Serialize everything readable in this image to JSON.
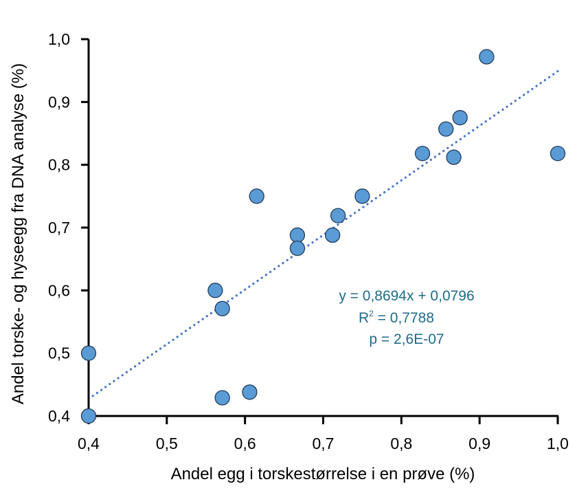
{
  "chart_data": {
    "type": "scatter",
    "title": "",
    "xlabel": "Andel egg i torskestørrelse i en prøve (%)",
    "ylabel": "Andel torske- og hyseegg fra DNA analyse (%)",
    "xlim": [
      0.4,
      1.0
    ],
    "ylim": [
      0.4,
      1.0
    ],
    "x_ticks": [
      0.4,
      0.5,
      0.6,
      0.7,
      0.8,
      0.9,
      1.0
    ],
    "y_ticks": [
      0.4,
      0.5,
      0.6,
      0.7,
      0.8,
      0.9,
      1.0
    ],
    "x_tick_labels": [
      "0,4",
      "0,5",
      "0,6",
      "0,7",
      "0,8",
      "0,9",
      "1,0"
    ],
    "y_tick_labels": [
      "0,4",
      "0,5",
      "0,6",
      "0,7",
      "0,8",
      "0,9",
      "1,0"
    ],
    "grid": false,
    "legend": "none",
    "series": [
      {
        "name": "samples",
        "color": "#5b9bd5",
        "edge_color": "#1f3b5a",
        "points": [
          {
            "x": 0.4,
            "y": 0.4
          },
          {
            "x": 0.4,
            "y": 0.5
          },
          {
            "x": 0.562,
            "y": 0.6
          },
          {
            "x": 0.571,
            "y": 0.571
          },
          {
            "x": 0.571,
            "y": 0.429
          },
          {
            "x": 0.606,
            "y": 0.438
          },
          {
            "x": 0.615,
            "y": 0.75
          },
          {
            "x": 0.667,
            "y": 0.688
          },
          {
            "x": 0.667,
            "y": 0.667
          },
          {
            "x": 0.712,
            "y": 0.688
          },
          {
            "x": 0.719,
            "y": 0.719
          },
          {
            "x": 0.75,
            "y": 0.75
          },
          {
            "x": 0.827,
            "y": 0.818
          },
          {
            "x": 0.857,
            "y": 0.857
          },
          {
            "x": 0.867,
            "y": 0.812
          },
          {
            "x": 0.875,
            "y": 0.875
          },
          {
            "x": 0.909,
            "y": 0.972
          },
          {
            "x": 1.0,
            "y": 0.818
          }
        ]
      }
    ],
    "trendline": {
      "type": "linear",
      "slope": 0.8694,
      "intercept": 0.0796,
      "x_range": [
        0.4,
        1.0
      ],
      "color": "#4472c4",
      "style": "dotted"
    },
    "annotations": [
      "y = 0,8694x + 0,0796",
      "R",
      "2",
      " = 0,7788",
      "p = 2,6E-07"
    ],
    "annotation_color": "#1f6a8a"
  }
}
